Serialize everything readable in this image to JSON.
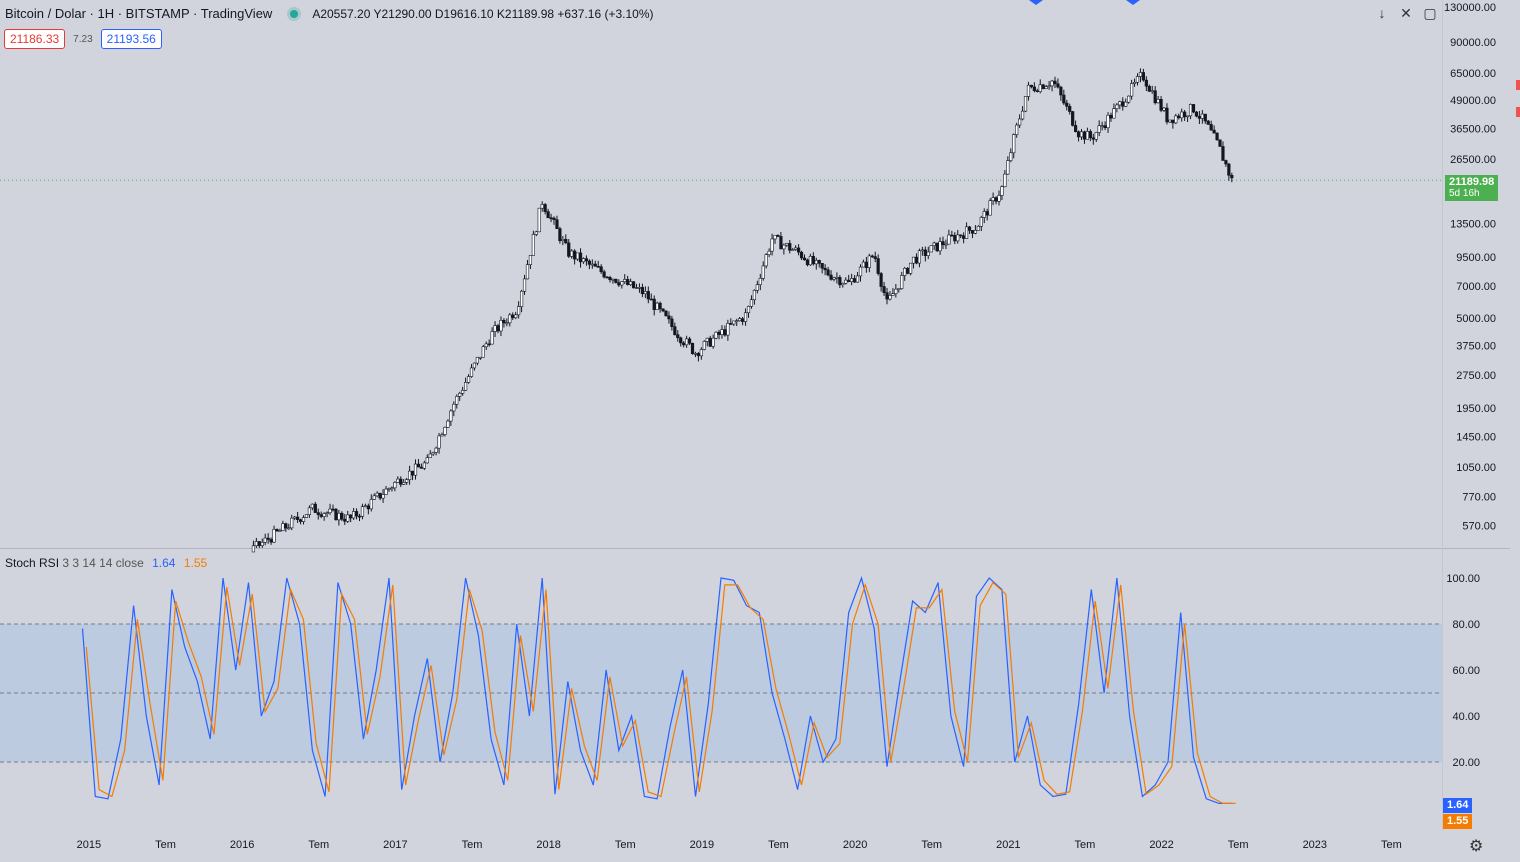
{
  "header": {
    "symbol": "Bitcoin / Dolar · 1H · BITSTAMP · TradingView",
    "ohlc": "A20557.20 Y21290.00 D19616.10 K21189.98 +637.16 (+3.10%)",
    "bid": "21186.33",
    "spread": "7.23",
    "ask": "21193.56"
  },
  "colors": {
    "background": "#d1d4dc",
    "candle": "#131722",
    "stoch_k": "#2962ff",
    "stoch_d": "#f57c00",
    "band_fill": "#bccbe0",
    "last_price": "#4caf50"
  },
  "icons": [
    "arrow-down-icon",
    "collapse-icon",
    "maximize-icon",
    "settings-gear-icon"
  ],
  "price_axis": {
    "ticks": [
      "130000.00",
      "90000.00",
      "65000.00",
      "49000.00",
      "36500.00",
      "26500.00",
      "13500.00",
      "9500.00",
      "7000.00",
      "5000.00",
      "3750.00",
      "2750.00",
      "1950.00",
      "1450.00",
      "1050.00",
      "770.00",
      "570.00"
    ],
    "last_price": "21189.98",
    "countdown": "5d 16h"
  },
  "indicator": {
    "name": "Stoch RSI",
    "params": "3 3 14 14 close",
    "k_value": "1.64",
    "d_value": "1.55",
    "axis_ticks": [
      "100.00",
      "80.00",
      "60.00",
      "40.00",
      "20.00"
    ]
  },
  "time_axis": [
    "2015",
    "Tem",
    "2016",
    "Tem",
    "2017",
    "Tem",
    "2018",
    "Tem",
    "2019",
    "Tem",
    "2020",
    "Tem",
    "2021",
    "Tem",
    "2022",
    "Tem",
    "2023",
    "Tem"
  ],
  "chart_data": [
    {
      "type": "line",
      "title": "Bitcoin / Dolar · 1H · BITSTAMP",
      "log_scale": true,
      "xlabel": "",
      "ylabel": "",
      "ylim": [
        570,
        130000
      ],
      "x": [
        "2014-12",
        "2015-03",
        "2015-07",
        "2015-10",
        "2016-01",
        "2016-06",
        "2016-09",
        "2017-01",
        "2017-03",
        "2017-05",
        "2017-08",
        "2017-10",
        "2017-12",
        "2018-02",
        "2018-04",
        "2018-08",
        "2018-11",
        "2018-12",
        "2019-04",
        "2019-06",
        "2019-08",
        "2019-10",
        "2019-12",
        "2020-02",
        "2020-03",
        "2020-05",
        "2020-08",
        "2020-10",
        "2020-12",
        "2021-01",
        "2021-02",
        "2021-04",
        "2021-06",
        "2021-07",
        "2021-09",
        "2021-11",
        "2022-01",
        "2022-03",
        "2022-04",
        "2022-05",
        "2022-06"
      ],
      "values": [
        400,
        260,
        290,
        240,
        430,
        680,
        610,
        940,
        1100,
        2000,
        4200,
        5500,
        17000,
        10000,
        8500,
        6500,
        4000,
        3500,
        5200,
        11500,
        10000,
        8200,
        7200,
        9800,
        5800,
        9200,
        11500,
        13000,
        19500,
        34000,
        55000,
        60000,
        35000,
        33000,
        45000,
        64000,
        40000,
        45000,
        38000,
        30000,
        21190
      ]
    },
    {
      "type": "line",
      "title": "Stoch RSI 3 3 14 14 close",
      "ylim": [
        0,
        100
      ],
      "x": [
        "2014-12",
        "2015-01",
        "2015-02",
        "2015-03",
        "2015-04",
        "2015-05",
        "2015-06",
        "2015-07",
        "2015-08",
        "2015-09",
        "2015-10",
        "2015-11",
        "2015-12",
        "2016-01",
        "2016-02",
        "2016-03",
        "2016-04",
        "2016-05",
        "2016-06",
        "2016-07",
        "2016-08",
        "2016-09",
        "2016-10",
        "2016-11",
        "2016-12",
        "2017-01",
        "2017-02",
        "2017-03",
        "2017-04",
        "2017-05",
        "2017-06",
        "2017-07",
        "2017-08",
        "2017-09",
        "2017-10",
        "2017-11",
        "2017-12",
        "2018-01",
        "2018-02",
        "2018-03",
        "2018-04",
        "2018-05",
        "2018-06",
        "2018-07",
        "2018-08",
        "2018-09",
        "2018-10",
        "2018-11",
        "2018-12",
        "2019-01",
        "2019-02",
        "2019-03",
        "2019-04",
        "2019-05",
        "2019-06",
        "2019-07",
        "2019-08",
        "2019-09",
        "2019-10",
        "2019-11",
        "2019-12",
        "2020-01",
        "2020-02",
        "2020-03",
        "2020-04",
        "2020-05",
        "2020-06",
        "2020-07",
        "2020-08",
        "2020-09",
        "2020-10",
        "2020-11",
        "2020-12",
        "2021-01",
        "2021-02",
        "2021-03",
        "2021-04",
        "2021-05",
        "2021-06",
        "2021-07",
        "2021-08",
        "2021-09",
        "2021-10",
        "2021-11",
        "2021-12",
        "2022-01",
        "2022-02",
        "2022-03",
        "2022-04",
        "2022-05",
        "2022-06"
      ],
      "series": [
        {
          "name": "K",
          "values": [
            78,
            5,
            4,
            30,
            88,
            40,
            10,
            95,
            70,
            55,
            30,
            100,
            60,
            98,
            40,
            55,
            100,
            80,
            25,
            5,
            98,
            80,
            30,
            60,
            100,
            8,
            40,
            65,
            20,
            50,
            100,
            75,
            30,
            10,
            80,
            40,
            100,
            6,
            55,
            25,
            10,
            60,
            25,
            40,
            5,
            4,
            35,
            60,
            5,
            45,
            100,
            99,
            88,
            85,
            50,
            30,
            8,
            40,
            20,
            30,
            85,
            100,
            78,
            18,
            55,
            90,
            85,
            98,
            40,
            18,
            92,
            100,
            95,
            20,
            40,
            10,
            5,
            6,
            45,
            95,
            50,
            100,
            40,
            5,
            10,
            20,
            85,
            22,
            4,
            2,
            2
          ]
        },
        {
          "name": "D",
          "values": [
            70,
            8,
            5,
            25,
            82,
            45,
            12,
            90,
            72,
            57,
            32,
            96,
            62,
            93,
            42,
            52,
            95,
            82,
            28,
            7,
            93,
            82,
            32,
            57,
            97,
            10,
            38,
            62,
            23,
            47,
            95,
            77,
            33,
            12,
            75,
            42,
            95,
            8,
            52,
            27,
            12,
            57,
            27,
            38,
            7,
            5,
            32,
            57,
            7,
            42,
            97,
            97,
            87,
            82,
            52,
            32,
            10,
            37,
            22,
            28,
            80,
            97,
            80,
            20,
            52,
            87,
            87,
            95,
            42,
            20,
            88,
            98,
            93,
            22,
            37,
            12,
            6,
            7,
            42,
            90,
            52,
            97,
            42,
            6,
            10,
            18,
            80,
            24,
            5,
            2,
            2
          ]
        }
      ]
    }
  ]
}
